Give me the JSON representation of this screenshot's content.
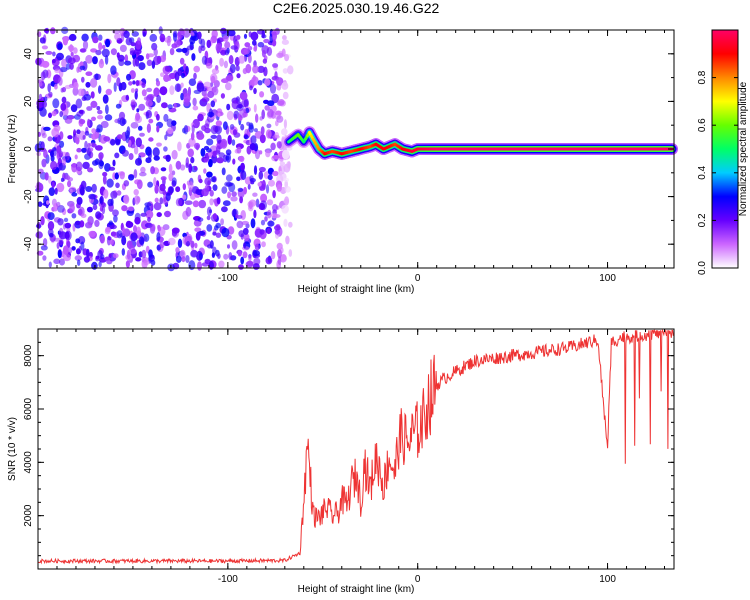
{
  "figure": {
    "title": "C2E6.2025.030.19.46.G22"
  },
  "chart_data": [
    {
      "type": "heatmap",
      "title": "C2E6.2025.030.19.46.G22",
      "xlabel": "Height of straight line (km)",
      "ylabel": "Frequency (Hz)",
      "xlim": [
        -200,
        135
      ],
      "ylim": [
        -50,
        50
      ],
      "xticks": [
        -100,
        0,
        100
      ],
      "xtick_labels": [
        "-100",
        "0",
        "100"
      ],
      "yticks": [
        -40,
        -20,
        0,
        20,
        40
      ],
      "ytick_labels": [
        "-40",
        "-20",
        "0",
        "20",
        "40"
      ],
      "colorbar": {
        "label": "Normalized spectral amplitude",
        "range": [
          0,
          1
        ],
        "ticks": [
          0.0,
          0.2,
          0.4,
          0.6,
          0.8
        ],
        "tick_labels": [
          "0.0",
          "0.2",
          "0.4",
          "0.6",
          "0.8"
        ],
        "colors": [
          "#ffffff",
          "#cc66ff",
          "#6600ff",
          "#0000ff",
          "#00ccff",
          "#00ff66",
          "#66ff00",
          "#ffff00",
          "#ff8800",
          "#ff0000",
          "#ff0066"
        ]
      },
      "noise_region_x": [
        -200,
        -67
      ],
      "signal_ridge": {
        "x": [
          -68,
          -63,
          -60,
          -57,
          -55,
          -52,
          -49,
          -45,
          -40,
          -35,
          -30,
          -25,
          -22,
          -18,
          -15,
          -12,
          -8,
          -3,
          0,
          10,
          40,
          80,
          135
        ],
        "freq": [
          3,
          6,
          3,
          7,
          4,
          0,
          -2,
          -1,
          -2,
          -1,
          0,
          1,
          2,
          0,
          1,
          2,
          0,
          -1,
          0,
          0,
          0,
          0,
          0
        ],
        "amplitude": [
          0.5,
          0.6,
          0.5,
          0.7,
          0.75,
          0.8,
          0.9,
          0.85,
          0.9,
          0.85,
          0.9,
          0.85,
          0.9,
          0.9,
          0.9,
          0.85,
          0.9,
          0.95,
          0.95,
          1.0,
          1.0,
          1.0,
          1.0
        ]
      }
    },
    {
      "type": "line",
      "xlabel": "Height of straight line (km)",
      "ylabel": "SNR (10 * v/v)",
      "xlim": [
        -200,
        135
      ],
      "ylim": [
        0,
        9000
      ],
      "xticks": [
        -100,
        0,
        100
      ],
      "xtick_labels": [
        "-100",
        "0",
        "100"
      ],
      "yticks": [
        2000,
        4000,
        6000,
        8000
      ],
      "ytick_labels": [
        "2000",
        "4000",
        "6000",
        "8000"
      ],
      "color": "#ee3333",
      "series": [
        {
          "x": [
            -200,
            -150,
            -100,
            -70,
            -62,
            -58,
            -55,
            -52,
            -50,
            -48,
            -45,
            -42,
            -40,
            -37,
            -35,
            -32,
            -30,
            -28,
            -25,
            -22,
            -20,
            -18,
            -15,
            -12,
            -10,
            -8,
            -5,
            -3,
            0,
            3,
            5,
            8,
            10,
            15,
            20,
            25,
            30,
            40,
            50,
            60,
            70,
            80,
            90,
            95,
            98,
            100,
            102,
            105,
            108,
            110,
            115,
            120,
            125,
            130,
            135
          ],
          "y": [
            300,
            300,
            300,
            320,
            600,
            4700,
            2000,
            1900,
            2100,
            2300,
            2000,
            2100,
            2600,
            2400,
            3200,
            3500,
            2500,
            4000,
            3000,
            4200,
            3800,
            3100,
            4200,
            3600,
            4800,
            5000,
            4700,
            5000,
            5200,
            5600,
            6200,
            6600,
            6900,
            7200,
            7400,
            7600,
            7800,
            7900,
            8000,
            8100,
            8200,
            8300,
            8500,
            8600,
            6000,
            4600,
            8500,
            8600,
            8700,
            8700,
            8750,
            8800,
            8850,
            8900,
            8900
          ]
        }
      ]
    }
  ]
}
